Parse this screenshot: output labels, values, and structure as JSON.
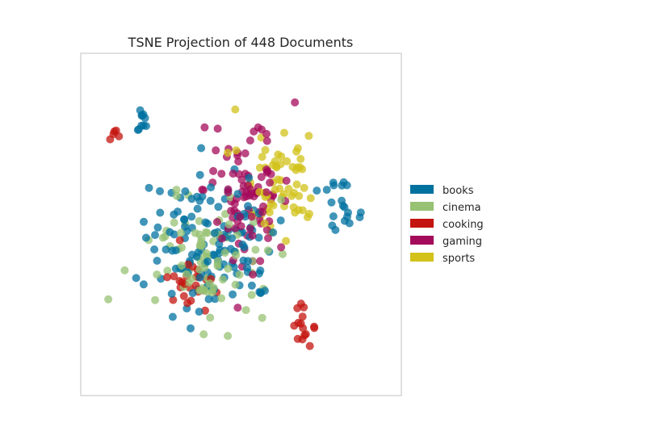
{
  "chart_data": {
    "type": "scatter",
    "title": "TSNE Projection of 448 Documents",
    "xlabel": "",
    "ylabel": "",
    "grid": false,
    "axis_ticks": "hidden",
    "legend_placement": "right",
    "colors": {
      "books": "#0072A0",
      "cinema": "#97C173",
      "cooking": "#C4140F",
      "gaming": "#A40A5A",
      "sports": "#D2C21A"
    },
    "categories": [
      "books",
      "cinema",
      "cooking",
      "gaming",
      "sports"
    ],
    "clusters": [
      {
        "name": "books",
        "center": [
          0.4,
          0.55
        ],
        "spread": [
          0.2,
          0.2
        ],
        "count": 130
      },
      {
        "name": "books",
        "center": [
          0.16,
          0.18
        ],
        "spread": [
          0.03,
          0.04
        ],
        "count": 10
      },
      {
        "name": "books",
        "center": [
          0.85,
          0.45
        ],
        "spread": [
          0.08,
          0.12
        ],
        "count": 20
      },
      {
        "name": "cinema",
        "center": [
          0.38,
          0.62
        ],
        "spread": [
          0.17,
          0.18
        ],
        "count": 90
      },
      {
        "name": "cooking",
        "center": [
          0.34,
          0.68
        ],
        "spread": [
          0.08,
          0.07
        ],
        "count": 25
      },
      {
        "name": "cooking",
        "center": [
          0.08,
          0.22
        ],
        "spread": [
          0.02,
          0.02
        ],
        "count": 5
      },
      {
        "name": "cooking",
        "center": [
          0.71,
          0.82
        ],
        "spread": [
          0.04,
          0.05
        ],
        "count": 15
      },
      {
        "name": "gaming",
        "center": [
          0.52,
          0.4
        ],
        "spread": [
          0.13,
          0.2
        ],
        "count": 90
      },
      {
        "name": "sports",
        "center": [
          0.63,
          0.35
        ],
        "spread": [
          0.12,
          0.15
        ],
        "count": 63
      }
    ],
    "total_documents": 448
  }
}
